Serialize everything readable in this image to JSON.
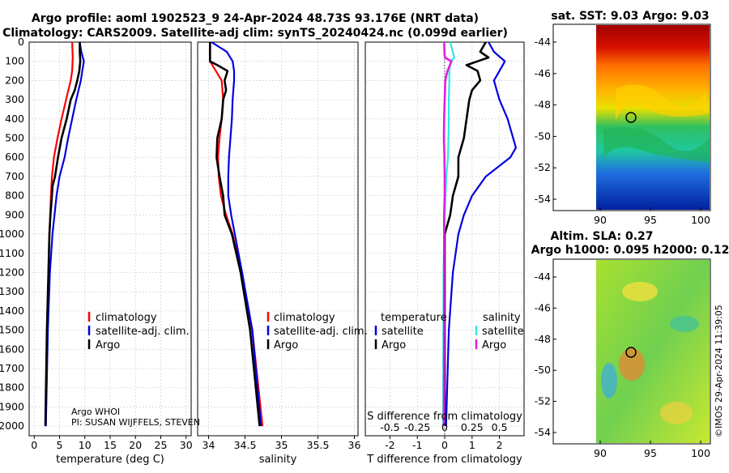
{
  "titles": {
    "line1": "Argo profile: aoml 1902523_9 24-Apr-2024 48.73S 93.176E (NRT data)",
    "line2": "Climatology: CARS2009. Satellite-adj clim: synTS_20240424.nc (0.099d earlier)"
  },
  "depth_ticks": [
    "0",
    "100",
    "200",
    "300",
    "400",
    "500",
    "600",
    "700",
    "800",
    "900",
    "1000",
    "1100",
    "1200",
    "1300",
    "1400",
    "1500",
    "1600",
    "1700",
    "1800",
    "1900",
    "2000"
  ],
  "colors": {
    "climatology": "#ff0000",
    "satellite": "#0000e0",
    "argo": "#000000",
    "sat_salinity": "#33e6e6",
    "argo_salinity": "#e020e0"
  },
  "chart_data": [
    {
      "type": "line",
      "name": "temperature-panel",
      "xlabel": "temperature (deg C)",
      "xlim": [
        -1,
        31
      ],
      "ylim": [
        2050,
        0
      ],
      "xticks": [
        "0",
        "5",
        "10",
        "15",
        "20",
        "25",
        "30"
      ],
      "xtick_values": [
        0,
        5,
        10,
        15,
        20,
        25,
        30
      ],
      "legend": [
        "climatology",
        "satellite-adj. clim.",
        "Argo"
      ],
      "series": [
        {
          "name": "climatology",
          "color": "#ff0000",
          "depth": [
            0,
            80,
            150,
            200,
            300,
            400,
            500,
            600,
            700,
            800,
            1000,
            1200,
            1500,
            2000
          ],
          "values": [
            7.5,
            7.6,
            7.5,
            7.2,
            6.3,
            5.4,
            4.6,
            3.9,
            3.5,
            3.3,
            3.0,
            2.8,
            2.6,
            2.3
          ]
        },
        {
          "name": "satellite-adj. clim.",
          "color": "#0000e0",
          "depth": [
            0,
            50,
            100,
            150,
            200,
            300,
            400,
            500,
            600,
            700,
            800,
            1000,
            1200,
            1500,
            2000
          ],
          "values": [
            9.0,
            9.3,
            9.8,
            9.5,
            9.2,
            8.3,
            7.5,
            6.7,
            6.0,
            5.0,
            4.4,
            3.6,
            3.1,
            2.7,
            2.3
          ]
        },
        {
          "name": "Argo",
          "color": "#000000",
          "depth": [
            0,
            50,
            100,
            150,
            200,
            250,
            300,
            350,
            400,
            500,
            600,
            700,
            750,
            800,
            900,
            1000,
            1200,
            1500,
            2000
          ],
          "values": [
            9.0,
            9.0,
            9.1,
            8.9,
            8.5,
            8.0,
            7.2,
            6.8,
            6.4,
            5.4,
            4.7,
            4.1,
            3.6,
            3.5,
            3.2,
            3.0,
            2.8,
            2.5,
            2.2
          ]
        }
      ],
      "annotations": [
        "Argo WHOI",
        "PI: SUSAN WIJFFELS, STEVEN"
      ]
    },
    {
      "type": "line",
      "name": "salinity-panel",
      "xlabel": "salinity",
      "xlim": [
        33.85,
        36.05
      ],
      "ylim": [
        2050,
        0
      ],
      "xticks": [
        "34",
        "34.5",
        "35",
        "35.5",
        "36"
      ],
      "xtick_values": [
        34,
        34.5,
        35,
        35.5,
        36
      ],
      "legend": [
        "climatology",
        "satellite-adj. clim.",
        "Argo"
      ],
      "series": [
        {
          "name": "climatology",
          "color": "#ff0000",
          "depth": [
            0,
            100,
            150,
            200,
            300,
            400,
            500,
            600,
            700,
            800,
            900,
            1000,
            1200,
            1500,
            2000
          ],
          "values": [
            34.02,
            34.02,
            34.1,
            34.18,
            34.2,
            34.18,
            34.15,
            34.13,
            34.14,
            34.17,
            34.24,
            34.33,
            34.45,
            34.6,
            34.74
          ]
        },
        {
          "name": "satellite-adj. clim.",
          "color": "#0000e0",
          "depth": [
            0,
            50,
            100,
            150,
            200,
            300,
            400,
            500,
            600,
            700,
            800,
            900,
            1000,
            1200,
            1500,
            2000
          ],
          "values": [
            34.04,
            34.25,
            34.33,
            34.35,
            34.35,
            34.33,
            34.32,
            34.3,
            34.28,
            34.27,
            34.27,
            34.31,
            34.36,
            34.46,
            34.6,
            34.72
          ]
        },
        {
          "name": "Argo",
          "color": "#000000",
          "depth": [
            0,
            100,
            120,
            150,
            200,
            250,
            300,
            400,
            500,
            600,
            700,
            800,
            900,
            1000,
            1200,
            1500,
            2000
          ],
          "values": [
            34.02,
            34.02,
            34.12,
            34.26,
            34.22,
            34.24,
            34.2,
            34.18,
            34.12,
            34.11,
            34.15,
            34.2,
            34.22,
            34.32,
            34.44,
            34.57,
            34.7
          ]
        }
      ]
    },
    {
      "type": "line",
      "name": "difference-panel",
      "xlabel": "T difference from climatology",
      "xlabel_top": "S difference from climatology",
      "xlim": [
        -2.9,
        2.9
      ],
      "ylim": [
        2050,
        0
      ],
      "xticks": [
        "-2",
        "-1",
        "0",
        "1",
        "2"
      ],
      "xtick_values": [
        -2,
        -1,
        0,
        1,
        2
      ],
      "xticks_top": [
        "-0.5",
        "-0.25",
        "0",
        "0.25",
        "0.5"
      ],
      "legend_headers": [
        "temperature",
        "salinity"
      ],
      "legend_temperature": [
        "satellite",
        "Argo"
      ],
      "legend_salinity": [
        "satellite",
        "Argo"
      ],
      "series": [
        {
          "name": "temperature satellite",
          "color": "#0000e0",
          "depth": [
            0,
            50,
            100,
            150,
            200,
            300,
            400,
            500,
            550,
            600,
            700,
            800,
            900,
            1000,
            1200,
            1500,
            2000
          ],
          "values": [
            1.6,
            1.8,
            2.2,
            2.0,
            1.8,
            2.0,
            2.3,
            2.5,
            2.6,
            2.4,
            1.5,
            1.0,
            0.7,
            0.5,
            0.3,
            0.15,
            0.05
          ]
        },
        {
          "name": "temperature Argo",
          "color": "#000000",
          "depth": [
            0,
            50,
            80,
            100,
            120,
            150,
            200,
            250,
            300,
            400,
            500,
            600,
            700,
            800,
            900,
            1000,
            1200,
            1500,
            2000
          ],
          "values": [
            1.5,
            1.3,
            1.6,
            1.2,
            0.8,
            1.2,
            1.3,
            1.0,
            0.9,
            0.8,
            0.7,
            0.5,
            0.5,
            0.3,
            0.2,
            0.0,
            0.0,
            0.0,
            0.0
          ]
        },
        {
          "name": "salinity satellite",
          "color": "#33e6e6",
          "depth": [
            0,
            50,
            80,
            100,
            150,
            200,
            300,
            400,
            500,
            600,
            700,
            800,
            900,
            1000,
            1200,
            1500,
            2000
          ],
          "values": [
            0.2,
            0.3,
            0.35,
            0.22,
            0.17,
            0.17,
            0.15,
            0.15,
            0.14,
            0.12,
            0.06,
            0.03,
            0.01,
            -0.02,
            -0.04,
            -0.05,
            -0.06
          ]
        },
        {
          "name": "salinity Argo",
          "color": "#e020e0",
          "depth": [
            0,
            50,
            80,
            100,
            150,
            200,
            300,
            400,
            500,
            600,
            700,
            800,
            900,
            1000,
            1200,
            1500,
            2000
          ],
          "values": [
            -0.02,
            -0.01,
            0.01,
            0.25,
            0.1,
            0.02,
            0.0,
            -0.02,
            -0.03,
            -0.01,
            0.0,
            0.0,
            -0.02,
            -0.02,
            -0.02,
            -0.02,
            -0.03
          ]
        }
      ]
    }
  ],
  "maps": {
    "sst": {
      "title": "sat. SST: 9.03 Argo: 9.03",
      "yticks": [
        "-44",
        "-46",
        "-48",
        "-50",
        "-52",
        "-54"
      ],
      "xticks": [
        "90",
        "95",
        "100"
      ]
    },
    "sla": {
      "title1": "Altim. SLA: 0.27",
      "title2": "Argo h1000: 0.095 h2000: 0.12",
      "yticks": [
        "-44",
        "-46",
        "-48",
        "-50",
        "-52",
        "-54"
      ],
      "xticks": [
        "90",
        "95",
        "100"
      ]
    }
  },
  "footer": "©IMOS 29-Apr-2024 11:39:05"
}
